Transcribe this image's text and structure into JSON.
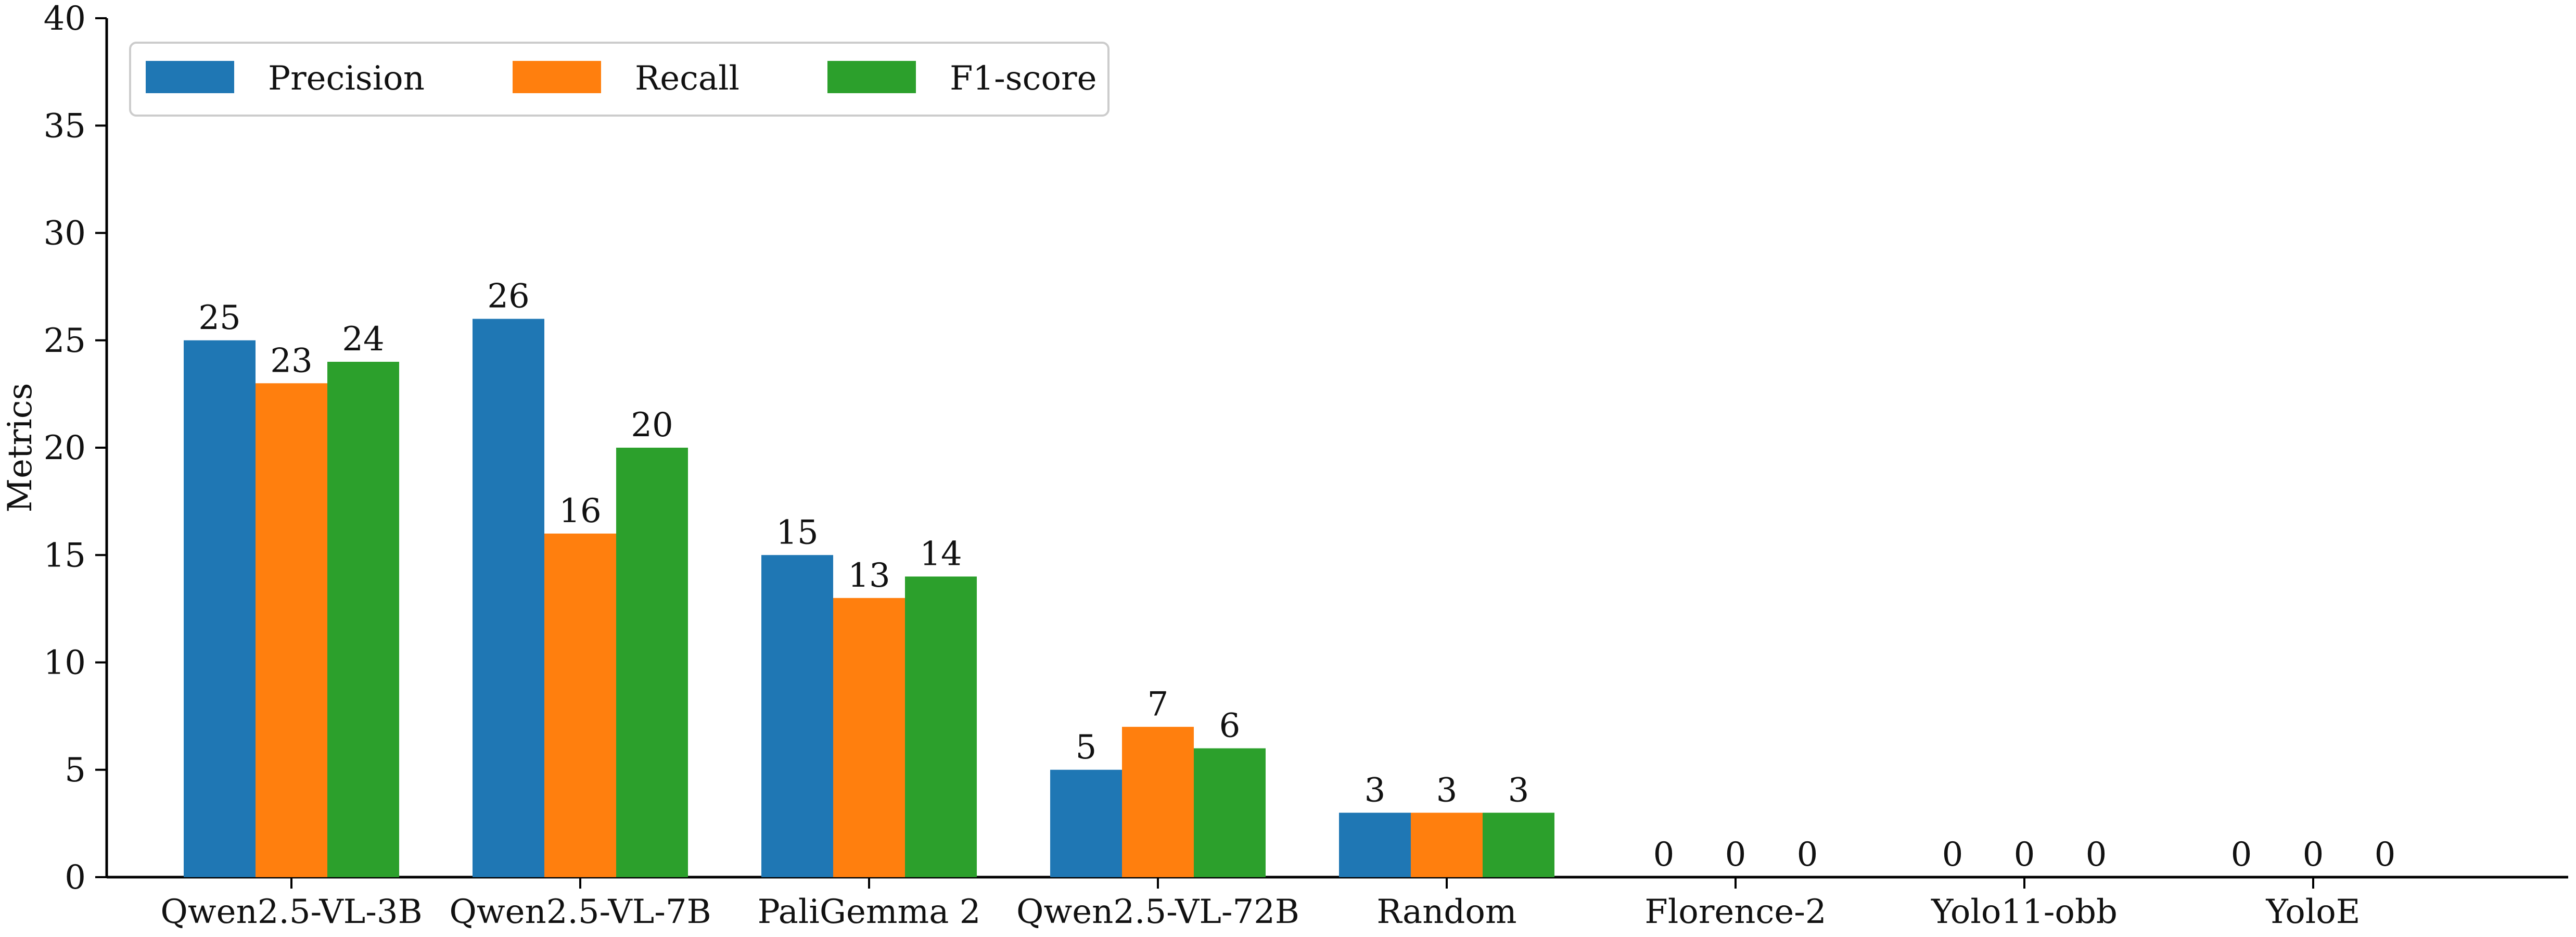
{
  "chart_data": {
    "type": "bar",
    "categories": [
      "Qwen2.5-VL-3B",
      "Qwen2.5-VL-7B",
      "PaliGemma 2",
      "Qwen2.5-VL-72B",
      "Random",
      "Florence-2",
      "Yolo11-obb",
      "YoloE"
    ],
    "series": [
      {
        "name": "Precision",
        "color": "#1f77b4",
        "values": [
          25,
          26,
          15,
          5,
          3,
          0,
          0,
          0
        ]
      },
      {
        "name": "Recall",
        "color": "#ff7f0e",
        "values": [
          23,
          16,
          13,
          7,
          3,
          0,
          0,
          0
        ]
      },
      {
        "name": "F1-score",
        "color": "#2ca02c",
        "values": [
          24,
          20,
          14,
          6,
          3,
          0,
          0,
          0
        ]
      }
    ],
    "title": "",
    "xlabel": "",
    "ylabel": "Metrics",
    "ylim": [
      0,
      40
    ],
    "yticks": [
      0,
      5,
      10,
      15,
      20,
      25,
      30,
      35,
      40
    ],
    "grid": false,
    "legend_position": "top-left"
  }
}
